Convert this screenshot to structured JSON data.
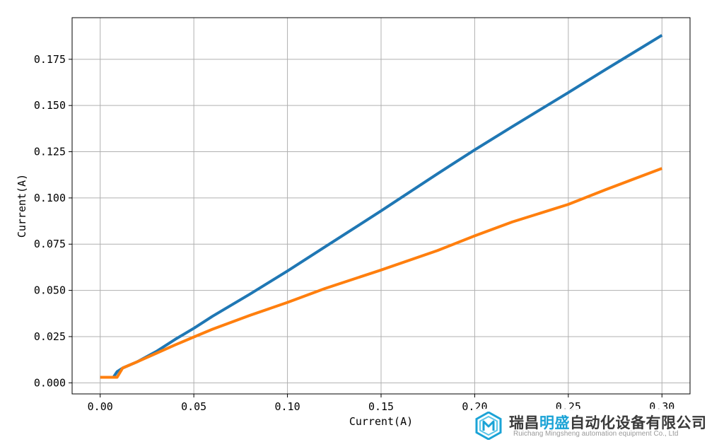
{
  "chart_data": {
    "type": "line",
    "title": "",
    "xlabel": "Current(A)",
    "ylabel": "Current(A)",
    "xlim": [
      -0.015,
      0.315
    ],
    "ylim": [
      -0.006,
      0.1975
    ],
    "xticks": [
      0.0,
      0.05,
      0.1,
      0.15,
      0.2,
      0.25,
      0.3
    ],
    "xtick_labels": [
      "0.00",
      "0.05",
      "0.10",
      "0.15",
      "0.20",
      "0.25",
      "0.30"
    ],
    "yticks": [
      0.0,
      0.025,
      0.05,
      0.075,
      0.1,
      0.125,
      0.15,
      0.175
    ],
    "ytick_labels": [
      "0.000",
      "0.025",
      "0.050",
      "0.075",
      "0.100",
      "0.125",
      "0.150",
      "0.175"
    ],
    "grid": true,
    "legend": "none",
    "series": [
      {
        "color": "#1f77b4",
        "x": [
          0.0,
          0.007,
          0.009,
          0.012,
          0.02,
          0.03,
          0.04,
          0.05,
          0.06,
          0.08,
          0.1,
          0.12,
          0.15,
          0.18,
          0.2,
          0.22,
          0.25,
          0.27,
          0.3
        ],
        "y": [
          0.003,
          0.003,
          0.006,
          0.008,
          0.0115,
          0.017,
          0.0235,
          0.0295,
          0.036,
          0.048,
          0.0605,
          0.0735,
          0.093,
          0.113,
          0.126,
          0.1385,
          0.157,
          0.1695,
          0.188
        ]
      },
      {
        "color": "#ff7f0e",
        "x": [
          0.0,
          0.008,
          0.009,
          0.012,
          0.02,
          0.03,
          0.04,
          0.05,
          0.06,
          0.08,
          0.1,
          0.12,
          0.15,
          0.18,
          0.2,
          0.22,
          0.25,
          0.27,
          0.3
        ],
        "y": [
          0.003,
          0.003,
          0.003,
          0.008,
          0.0115,
          0.016,
          0.0205,
          0.0248,
          0.029,
          0.0365,
          0.0435,
          0.051,
          0.061,
          0.0715,
          0.0795,
          0.087,
          0.0965,
          0.1045,
          0.116
        ]
      }
    ]
  },
  "watermark": {
    "logo_icon": "hexagon-logo-icon",
    "brand_cn_a": "瑞昌",
    "brand_cn_b": "明盛",
    "brand_cn_c": "自动化设备有限公司",
    "brand_en": "Ruichang Mingsheng automation equipment Co., Ltd",
    "accent": "#1ba3d6"
  }
}
